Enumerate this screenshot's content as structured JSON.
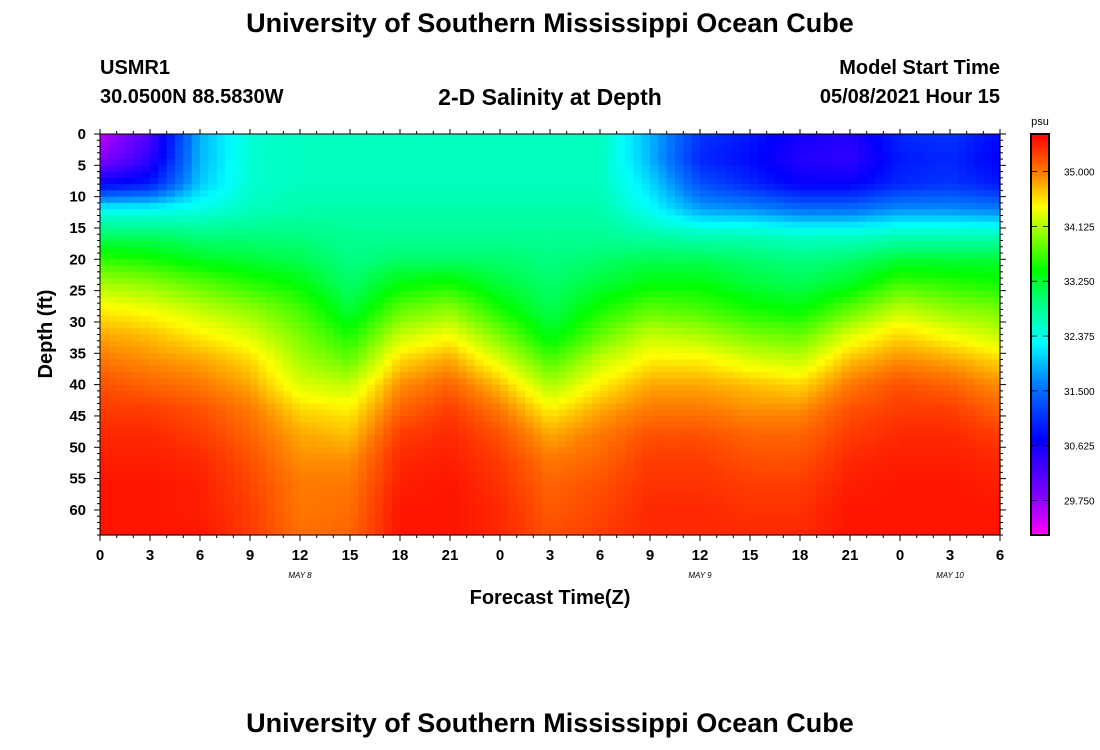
{
  "header": {
    "title": "University of Southern Mississippi Ocean Cube",
    "station_id": "USMR1",
    "coordinates": "30.0500N  88.5830W",
    "plot_title": "2-D Salinity at Depth",
    "model_start_label": "Model Start Time",
    "model_start_value": "05/08/2021 Hour 15"
  },
  "footer": {
    "title": "University of Southern Mississippi Ocean Cube"
  },
  "chart_data": {
    "type": "heatmap",
    "title": "2-D Salinity at Depth",
    "xlabel": "Forecast Time(Z)",
    "ylabel": "Depth (ft)",
    "x_hours": [
      0,
      54
    ],
    "y_range_ft": [
      0,
      64
    ],
    "x_tick_labels": [
      "0",
      "3",
      "6",
      "9",
      "12",
      "15",
      "18",
      "21",
      "0",
      "3",
      "6",
      "9",
      "12",
      "15",
      "18",
      "21",
      "0",
      "3",
      "6"
    ],
    "y_tick_labels": [
      "0",
      "5",
      "10",
      "15",
      "20",
      "25",
      "30",
      "35",
      "40",
      "45",
      "50",
      "55",
      "60"
    ],
    "date_labels": [
      {
        "text": "MAY 8",
        "hour": 12
      },
      {
        "text": "MAY 9",
        "hour": 36
      },
      {
        "text": "MAY 10",
        "hour": 51
      }
    ],
    "colorbar": {
      "unit": "psu",
      "min": 29.2,
      "max": 35.6,
      "tick_labels": [
        "35.000",
        "34.125",
        "33.250",
        "32.375",
        "31.500",
        "30.625",
        "29.750"
      ],
      "tick_values": [
        35.0,
        34.125,
        33.25,
        32.375,
        31.5,
        30.625,
        29.75
      ]
    },
    "depth_levels_ft": [
      0,
      4,
      8,
      12,
      16,
      20,
      24,
      28,
      32,
      36,
      40,
      44,
      48,
      52,
      56,
      60,
      64
    ],
    "time_hours": [
      0,
      3,
      6,
      9,
      12,
      15,
      18,
      21,
      24,
      27,
      30,
      33,
      36,
      39,
      42,
      45,
      48,
      51,
      54
    ],
    "salinity_psu": [
      [
        29.5,
        30.2,
        31.9,
        32.5,
        32.6,
        32.6,
        32.6,
        32.6,
        32.6,
        32.6,
        32.6,
        31.9,
        31.1,
        30.9,
        30.6,
        30.5,
        31.0,
        31.1,
        30.8
      ],
      [
        29.8,
        30.4,
        31.9,
        32.5,
        32.6,
        32.6,
        32.6,
        32.6,
        32.6,
        32.6,
        32.6,
        31.9,
        31.0,
        30.8,
        30.5,
        30.4,
        30.9,
        31.0,
        30.7
      ],
      [
        30.7,
        30.9,
        32.0,
        32.5,
        32.6,
        32.6,
        32.6,
        32.6,
        32.6,
        32.6,
        32.6,
        32.1,
        31.3,
        31.0,
        30.7,
        30.7,
        31.0,
        31.1,
        30.9
      ],
      [
        32.3,
        32.3,
        32.4,
        32.6,
        32.7,
        32.7,
        32.7,
        32.7,
        32.7,
        32.7,
        32.7,
        32.3,
        31.8,
        31.7,
        31.5,
        31.5,
        31.7,
        31.7,
        31.6
      ],
      [
        33.0,
        33.0,
        32.9,
        32.9,
        32.9,
        32.8,
        32.8,
        32.8,
        32.8,
        32.8,
        32.8,
        32.7,
        32.6,
        32.6,
        32.5,
        32.5,
        32.6,
        32.6,
        32.6
      ],
      [
        33.6,
        33.5,
        33.3,
        33.2,
        33.1,
        32.9,
        33.0,
        33.0,
        33.0,
        32.9,
        33.0,
        33.1,
        33.1,
        33.0,
        32.9,
        33.0,
        33.2,
        33.2,
        33.2
      ],
      [
        34.1,
        34.0,
        33.8,
        33.6,
        33.4,
        33.0,
        33.4,
        33.5,
        33.2,
        33.0,
        33.2,
        33.4,
        33.4,
        33.2,
        33.1,
        33.3,
        33.7,
        33.6,
        33.5
      ],
      [
        34.5,
        34.4,
        34.2,
        34.0,
        33.7,
        33.2,
        33.8,
        34.0,
        33.5,
        33.1,
        33.5,
        33.8,
        33.7,
        33.5,
        33.4,
        33.8,
        34.2,
        34.0,
        33.9
      ],
      [
        34.8,
        34.7,
        34.5,
        34.3,
        33.9,
        33.5,
        34.2,
        34.4,
        33.9,
        33.3,
        33.8,
        34.2,
        34.1,
        33.9,
        33.8,
        34.3,
        34.6,
        34.4,
        34.2
      ],
      [
        35.0,
        34.9,
        34.8,
        34.6,
        34.1,
        33.8,
        34.6,
        34.8,
        34.3,
        33.7,
        34.2,
        34.5,
        34.5,
        34.3,
        34.2,
        34.7,
        34.9,
        34.8,
        34.6
      ],
      [
        35.2,
        35.1,
        35.0,
        34.8,
        34.3,
        34.2,
        34.9,
        35.1,
        34.7,
        34.1,
        34.5,
        34.8,
        34.8,
        34.7,
        34.6,
        35.0,
        35.2,
        35.1,
        34.9
      ],
      [
        35.3,
        35.3,
        35.2,
        35.0,
        34.6,
        34.5,
        35.1,
        35.3,
        35.0,
        34.5,
        34.8,
        35.0,
        35.0,
        34.9,
        34.9,
        35.2,
        35.3,
        35.3,
        35.1
      ],
      [
        35.4,
        35.4,
        35.3,
        35.1,
        34.8,
        34.7,
        35.3,
        35.4,
        35.2,
        34.8,
        35.0,
        35.2,
        35.2,
        35.1,
        35.1,
        35.3,
        35.4,
        35.4,
        35.3
      ],
      [
        35.45,
        35.45,
        35.4,
        35.2,
        34.9,
        34.9,
        35.4,
        35.45,
        35.3,
        35.0,
        35.1,
        35.3,
        35.3,
        35.2,
        35.2,
        35.4,
        35.45,
        35.45,
        35.4
      ],
      [
        35.5,
        35.5,
        35.45,
        35.25,
        35.0,
        35.0,
        35.45,
        35.5,
        35.35,
        35.1,
        35.2,
        35.35,
        35.35,
        35.3,
        35.3,
        35.45,
        35.5,
        35.5,
        35.45
      ],
      [
        35.5,
        35.5,
        35.45,
        35.3,
        35.0,
        35.05,
        35.5,
        35.5,
        35.4,
        35.15,
        35.25,
        35.4,
        35.4,
        35.35,
        35.35,
        35.5,
        35.5,
        35.5,
        35.5
      ],
      [
        35.5,
        35.5,
        35.5,
        35.3,
        35.05,
        35.1,
        35.5,
        35.5,
        35.4,
        35.2,
        35.3,
        35.4,
        35.4,
        35.4,
        35.4,
        35.5,
        35.5,
        35.5,
        35.5
      ]
    ]
  }
}
